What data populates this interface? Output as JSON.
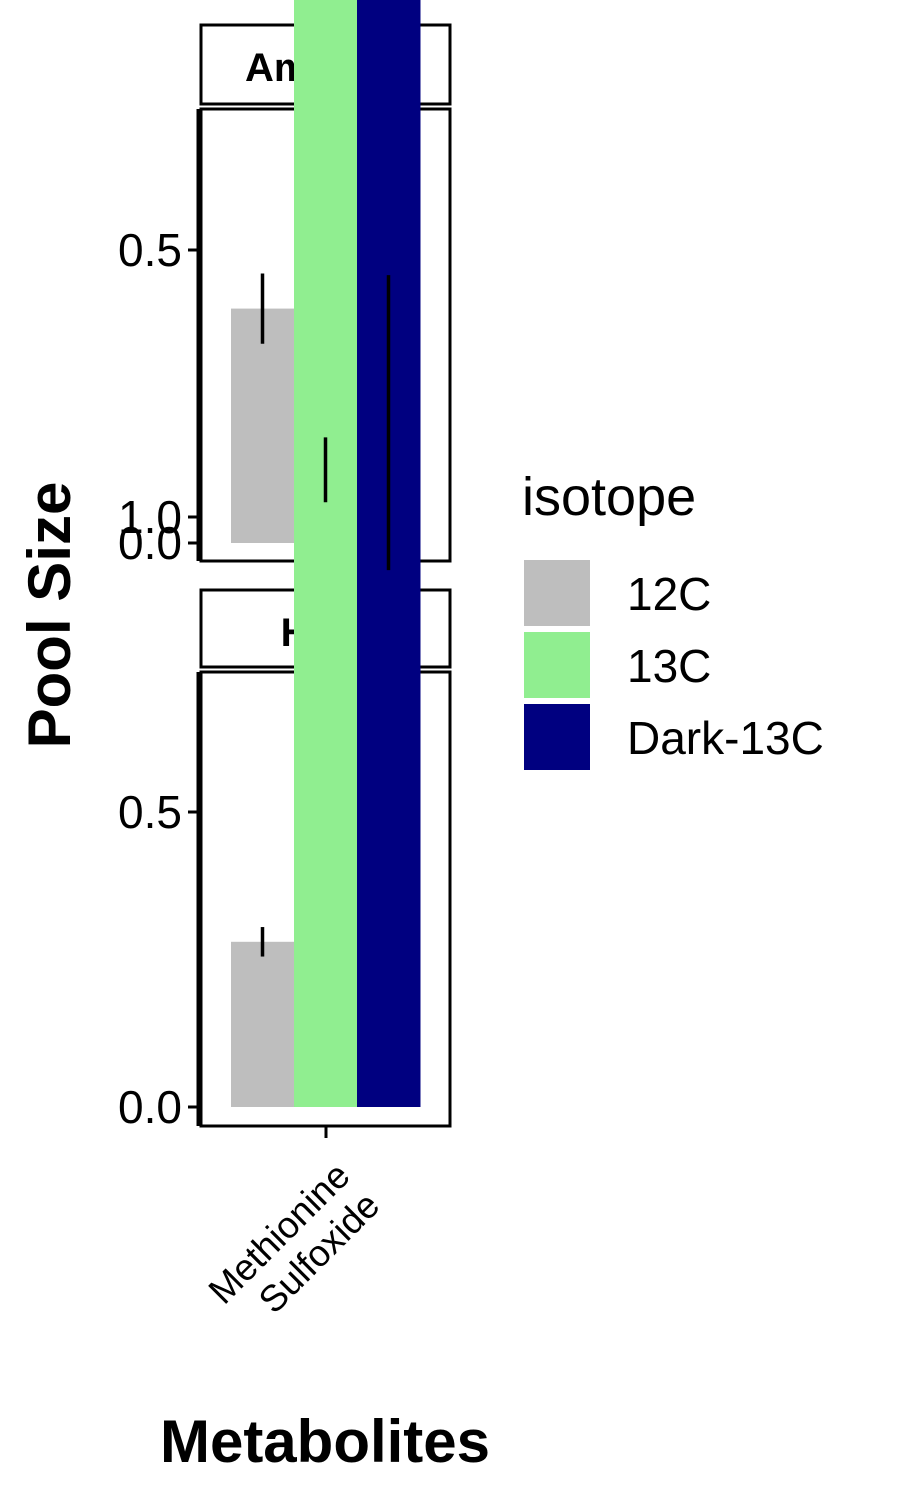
{
  "chart_data": {
    "type": "bar",
    "xlabel": "Metabolites",
    "ylabel": "Pool Size",
    "categories": [
      "Methionine Sulfoxide"
    ],
    "category_label_lines": [
      "Methionine",
      "Sulfoxide"
    ],
    "ylim": [
      0,
      1.45
    ],
    "yticks": [
      "0.0",
      "0.5",
      "1.0"
    ],
    "yticks_values": [
      0.0,
      0.5,
      1.0
    ],
    "grid": false,
    "legend": {
      "title": "isotope",
      "position": "right",
      "entries": [
        {
          "name": "12C",
          "color": "#BEBEBE"
        },
        {
          "name": "13C",
          "color": "#90EE90"
        },
        {
          "name": "Dark-13C",
          "color": "#000080"
        }
      ]
    },
    "facets": [
      {
        "label": "Ambient",
        "series": [
          {
            "name": "12C",
            "values": [
              0.4
            ],
            "error": [
              0.06
            ]
          },
          {
            "name": "13C",
            "values": [
              1.18
            ],
            "error": [
              0.07
            ]
          },
          {
            "name": "Dark-13C",
            "values": [
              1.26
            ],
            "error": [
              0.0
            ]
          }
        ]
      },
      {
        "label": "High",
        "series": [
          {
            "name": "12C",
            "values": [
              0.28
            ],
            "error": [
              0.025
            ]
          },
          {
            "name": "13C",
            "values": [
              1.08
            ],
            "error": [
              0.055
            ]
          },
          {
            "name": "Dark-13C",
            "values": [
              1.16
            ],
            "error": [
              0.25
            ]
          }
        ]
      }
    ]
  }
}
